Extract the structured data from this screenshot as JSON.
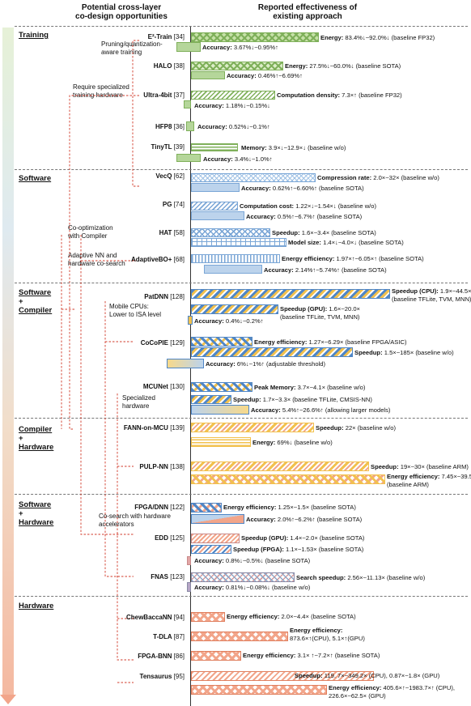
{
  "header": {
    "left": [
      "Potential cross-layer",
      "co-design opportunities"
    ],
    "right": [
      "Reported effectiveness of",
      "existing approach"
    ]
  },
  "sections": [
    {
      "lines": [
        "Training"
      ]
    },
    {
      "lines": [
        "Software"
      ]
    },
    {
      "lines": [
        "Software",
        "+",
        "Compiler"
      ]
    },
    {
      "lines": [
        "Compiler",
        "+",
        "Hardware"
      ]
    },
    {
      "lines": [
        "Software",
        "+",
        "Hardware"
      ]
    },
    {
      "lines": [
        "Hardware"
      ]
    }
  ],
  "methods": [
    {
      "name": "E²-Train",
      "ref": "[34]"
    },
    {
      "name": "HALO",
      "ref": "[38]"
    },
    {
      "name": "Ultra-4bit",
      "ref": "[37]"
    },
    {
      "name": "HFP8",
      "ref": "[36]"
    },
    {
      "name": "TinyTL",
      "ref": "[39]"
    },
    {
      "name": "VecQ",
      "ref": "[62]"
    },
    {
      "name": "PG",
      "ref": "[74]"
    },
    {
      "name": "HAT",
      "ref": "[58]"
    },
    {
      "name": "AdaptiveBO+",
      "ref": "[68]"
    },
    {
      "name": "PatDNN",
      "ref": "[128]"
    },
    {
      "name": "CoCoPIE",
      "ref": "[129]"
    },
    {
      "name": "MCUNet",
      "ref": "[130]"
    },
    {
      "name": "FANN-on-MCU",
      "ref": "[139]"
    },
    {
      "name": "PULP-NN",
      "ref": "[138]"
    },
    {
      "name": "FPGA/DNN",
      "ref": "[122]"
    },
    {
      "name": "EDD",
      "ref": "[125]"
    },
    {
      "name": "FNAS",
      "ref": "[123]"
    },
    {
      "name": "ChewBaccaNN",
      "ref": "[94]"
    },
    {
      "name": "T-DLA",
      "ref": "[87]"
    },
    {
      "name": "FPGA-BNN",
      "ref": "[86]"
    },
    {
      "name": "Tensaurus",
      "ref": "[95]"
    }
  ],
  "notes": [
    [
      "Pruning/quantization-",
      "aware training"
    ],
    [
      "Require specialized",
      "training hardware"
    ],
    [
      "Co-optimization",
      "with Compiler"
    ],
    [
      "Adaptive NN and",
      "hardware co-search"
    ],
    [
      "Mobile CPUs:",
      "Lower to ISA level"
    ],
    [
      "Specialized",
      "hardware"
    ],
    [
      "Co-search with hardware",
      "accelerators"
    ]
  ],
  "metrics": [
    {
      "label": "Energy:",
      "text": "83.4%↓~92.0%↓ (baseline FP32)"
    },
    {
      "label": "Accuracy:",
      "text": "3.67%↓~0.95%↑"
    },
    {
      "label": "Energy:",
      "text": "27.5%↓~60.0%↓ (baseline SOTA)"
    },
    {
      "label": "Accuracy:",
      "text": "0.46%↑~6.69%↑"
    },
    {
      "label": "Computation density:",
      "text": "7.3×↑ (baseline FP32)"
    },
    {
      "label": "Accuracy:",
      "text": "1.18%↓~0.15%↓"
    },
    {
      "label": "Accuracy:",
      "text": "0.52%↓~0.1%↑"
    },
    {
      "label": "Memory:",
      "text": "3.9×↓~12.9×↓ (baseline w/o)"
    },
    {
      "label": "Accuracy:",
      "text": "3.4%↓~1.0%↑"
    },
    {
      "label": "Compression rate:",
      "text": "2.0×~32× (baseline w/o)"
    },
    {
      "label": "Accuracy:",
      "text": "0.62%↑~6.60%↑ (baseline SOTA)"
    },
    {
      "label": "Computation cost:",
      "text": "1.22×↓~1.54×↓ (baseline w/o)"
    },
    {
      "label": "Accuracy:",
      "text": "0.5%↑~6.7%↑ (baseline SOTA)"
    },
    {
      "label": "Speedup:",
      "text": "1.6×~3.4× (baseline SOTA)"
    },
    {
      "label": "Model size:",
      "text": "1.4×↓~4.0×↓ (baseline SOTA)"
    },
    {
      "label": "Energy efficiency:",
      "text": "1.97×↑~6.05×↑ (baseline SOTA)"
    },
    {
      "label": "Accuracy:",
      "text": "2.14%↑~5.74%↑ (baseline SOTA)"
    },
    {
      "label": "Speedup (CPU):",
      "text": "1.9×~44.5×",
      "text2": "(baseline TFLite, TVM, MNN)"
    },
    {
      "label": "Speedup (GPU):",
      "text": "1.6×~20.0×",
      "text2": "(baseline TFLite, TVM, MNN)"
    },
    {
      "label": "Accuracy:",
      "text": "0.4%↓~0.2%↑"
    },
    {
      "label": "Energy efficiency:",
      "text": "1.27×~6.29× (baseline FPGA/ASIC)"
    },
    {
      "label": "Speedup:",
      "text": "1.5×~185× (baseline w/o)"
    },
    {
      "label": "Accuracy:",
      "text": "6%↓~1%↑ (adjustable threshold)"
    },
    {
      "label": "Peak Memory:",
      "text": "3.7×~4.1× (baseline w/o)"
    },
    {
      "label": "Speedup:",
      "text": "1.7×~3.3× (baseline TFLite, CMSIS-NN)"
    },
    {
      "label": "Accuracy:",
      "text": "5.4%↑~26.6%↑ (allowing larger models)"
    },
    {
      "label": "Speedup:",
      "text": "22× (baseline w/o)"
    },
    {
      "label": "Energy:",
      "text": "69%↓ (baseline w/o)"
    },
    {
      "label": "Speedup:",
      "text": "19×~30× (baseline ARM)"
    },
    {
      "label": "Energy efficiency:",
      "text": "7.45×~39.5×",
      "text2": "(baseline ARM)"
    },
    {
      "label": "Energy efficiency:",
      "text": "1.25×~1.5× (baseline SOTA)"
    },
    {
      "label": "Accuracy:",
      "text": "2.0%↑~6.2%↑ (baseline SOTA)"
    },
    {
      "label": "Speedup (GPU):",
      "text": "1.4×~2.0× (baseline SOTA)"
    },
    {
      "label": "Speedup (FPGA):",
      "text": "1.1×~1.53× (baseline SOTA)"
    },
    {
      "label": "Accuracy:",
      "text": "0.8%↓~0.5%↓ (baseline SOTA)"
    },
    {
      "label": "Search speedup:",
      "text": "2.56×~11.13× (baseline w/o)"
    },
    {
      "label": "Accuracy:",
      "text": "0.81%↓~0.08%↓ (baseline w/o)"
    },
    {
      "label": "Energy efficiency:",
      "text": "2.0×~4.4× (baseline SOTA)"
    },
    {
      "label": "Energy efficiency:",
      "text": "873.6×↑(CPU), 5.1×↑(GPU)",
      "labelOwnLine": true
    },
    {
      "label": "Energy efficiency:",
      "text": "3.1× ↑~7.2×↑ (baseline SOTA)"
    },
    {
      "label": "Speedup:",
      "text": "119. 7×~349.2× (CPU), 0.87×~1.8× (GPU)"
    },
    {
      "label": "Energy efficiency:",
      "text": "405.6×↑~1983.7×↑ (CPU),",
      "text2": "226.6×~62.5× (GPU)"
    }
  ],
  "colors": {
    "green": "#9ccc7a",
    "blue": "#7aa6d6",
    "yellow": "#f2c14e",
    "salmon": "#f2a58a",
    "connector": "#d23b2b"
  }
}
